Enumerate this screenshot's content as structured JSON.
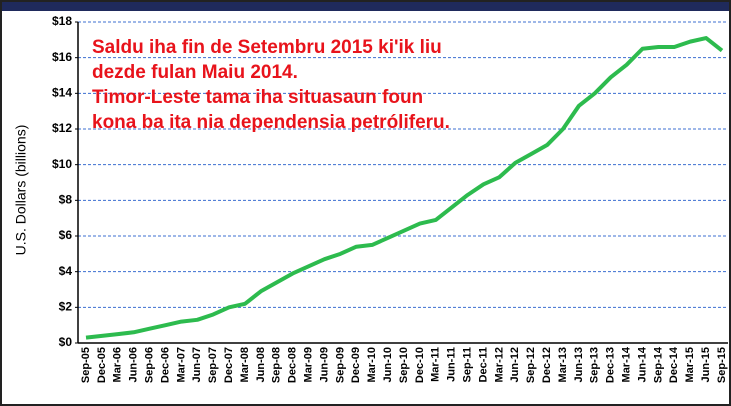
{
  "chart_data": {
    "type": "line",
    "y_label": "U.S. Dollars (billions)",
    "annotation": [
      "Saldu iha fin de Setembru 2015 ki'ik liu",
      "dezde fulan Maiu 2014.",
      "Timor-Leste tama iha situasaun foun",
      "kona ba ita nia dependensia petróliferu."
    ],
    "annotation_color": "#e8131b",
    "categories": [
      "Sep-05",
      "Dec-05",
      "Mar-06",
      "Jun-06",
      "Sep-06",
      "Dec-06",
      "Mar-07",
      "Jun-07",
      "Sep-07",
      "Dec-07",
      "Mar-08",
      "Jun-08",
      "Sep-08",
      "Dec-08",
      "Mar-09",
      "Jun-09",
      "Sep-09",
      "Dec-09",
      "Mar-10",
      "Jun-10",
      "Sep-10",
      "Dec-10",
      "Mar-11",
      "Jun-11",
      "Sep-11",
      "Dec-11",
      "Mar-12",
      "Jun-12",
      "Sep-12",
      "Dec-12",
      "Mar-13",
      "Jun-13",
      "Sep-13",
      "Dec-13",
      "Mar-14",
      "Jun-14",
      "Sep-14",
      "Dec-14",
      "Mar-15",
      "Jun-15",
      "Sep-15"
    ],
    "series": [
      {
        "color": "#2dbb4e",
        "values": [
          0.3,
          0.4,
          0.5,
          0.6,
          0.8,
          1.0,
          1.2,
          1.3,
          1.6,
          2.0,
          2.2,
          2.9,
          3.4,
          3.9,
          4.3,
          4.7,
          5.0,
          5.4,
          5.5,
          5.9,
          6.3,
          6.7,
          6.9,
          7.6,
          8.3,
          8.9,
          9.3,
          10.1,
          10.6,
          11.1,
          12.0,
          13.3,
          14.0,
          14.9,
          15.6,
          16.5,
          16.6,
          16.6,
          16.9,
          17.1,
          16.4
        ]
      }
    ],
    "ylim": [
      0,
      18
    ],
    "yticks": [
      {
        "value": 0,
        "label": "$0"
      },
      {
        "value": 2,
        "label": "$2"
      },
      {
        "value": 4,
        "label": "$4"
      },
      {
        "value": 6,
        "label": "$6"
      },
      {
        "value": 8,
        "label": "$8"
      },
      {
        "value": 10,
        "label": "$10"
      },
      {
        "value": 12,
        "label": "$12"
      },
      {
        "value": 14,
        "label": "$14"
      },
      {
        "value": 16,
        "label": "$16"
      },
      {
        "value": 18,
        "label": "$18"
      }
    ],
    "grid": true
  }
}
